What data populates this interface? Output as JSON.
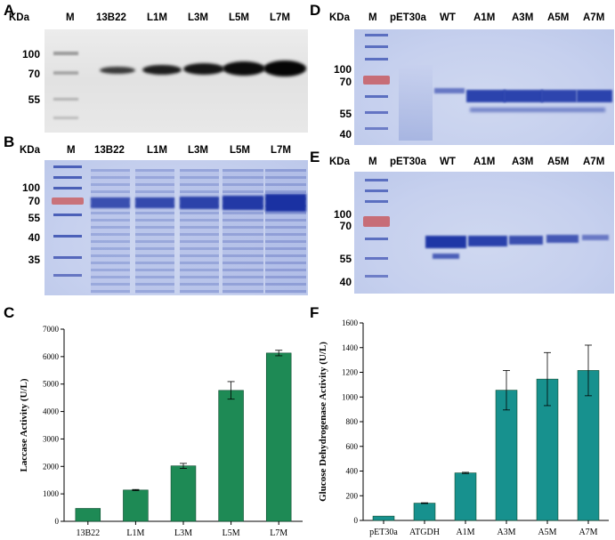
{
  "panels": {
    "A": {
      "letter": "A",
      "unit": "KDa",
      "lanes": [
        "M",
        "13B22",
        "L1M",
        "L3M",
        "L5M",
        "L7M"
      ],
      "markers": [
        "100",
        "70",
        "55"
      ]
    },
    "B": {
      "letter": "B",
      "unit": "KDa",
      "lanes": [
        "M",
        "13B22",
        "L1M",
        "L3M",
        "L5M",
        "L7M"
      ],
      "markers": [
        "100",
        "70",
        "55",
        "40",
        "35"
      ]
    },
    "C": {
      "letter": "C"
    },
    "D": {
      "letter": "D",
      "unit": "KDa",
      "lanes": [
        "M",
        "pET30a",
        "WT",
        "A1M",
        "A3M",
        "A5M",
        "A7M"
      ],
      "markers": [
        "100",
        "70",
        "55",
        "40"
      ]
    },
    "E": {
      "letter": "E",
      "unit": "KDa",
      "lanes": [
        "M",
        "pET30a",
        "WT",
        "A1M",
        "A3M",
        "A5M",
        "A7M"
      ],
      "markers": [
        "100",
        "70",
        "55",
        "40"
      ]
    },
    "F": {
      "letter": "F"
    }
  },
  "chart_data": [
    {
      "type": "bar",
      "panel": "C",
      "categories": [
        "13B22",
        "L1M",
        "L3M",
        "L5M",
        "L7M"
      ],
      "values": [
        470,
        1140,
        2020,
        4770,
        6130
      ],
      "errors": [
        0,
        20,
        90,
        320,
        100
      ],
      "xlabel": "",
      "ylabel": "Laccase Activity (U/L)",
      "ylim": [
        0,
        7000
      ],
      "yticks": [
        0,
        1000,
        2000,
        3000,
        4000,
        5000,
        6000,
        7000
      ],
      "color": "#1e8a55",
      "grid": false
    },
    {
      "type": "bar",
      "panel": "F",
      "categories": [
        "pET30a",
        "ATGDH",
        "A1M",
        "A3M",
        "A5M",
        "A7M"
      ],
      "values": [
        35,
        140,
        385,
        1055,
        1145,
        1215
      ],
      "errors": [
        0,
        3,
        5,
        160,
        215,
        205
      ],
      "xlabel": "",
      "ylabel": "Glucose Dehydrogenase Activity (U/L)",
      "ylim": [
        0,
        1600
      ],
      "yticks": [
        0,
        200,
        400,
        600,
        800,
        1000,
        1200,
        1400,
        1600
      ],
      "color": "#17918e",
      "grid": false
    }
  ]
}
